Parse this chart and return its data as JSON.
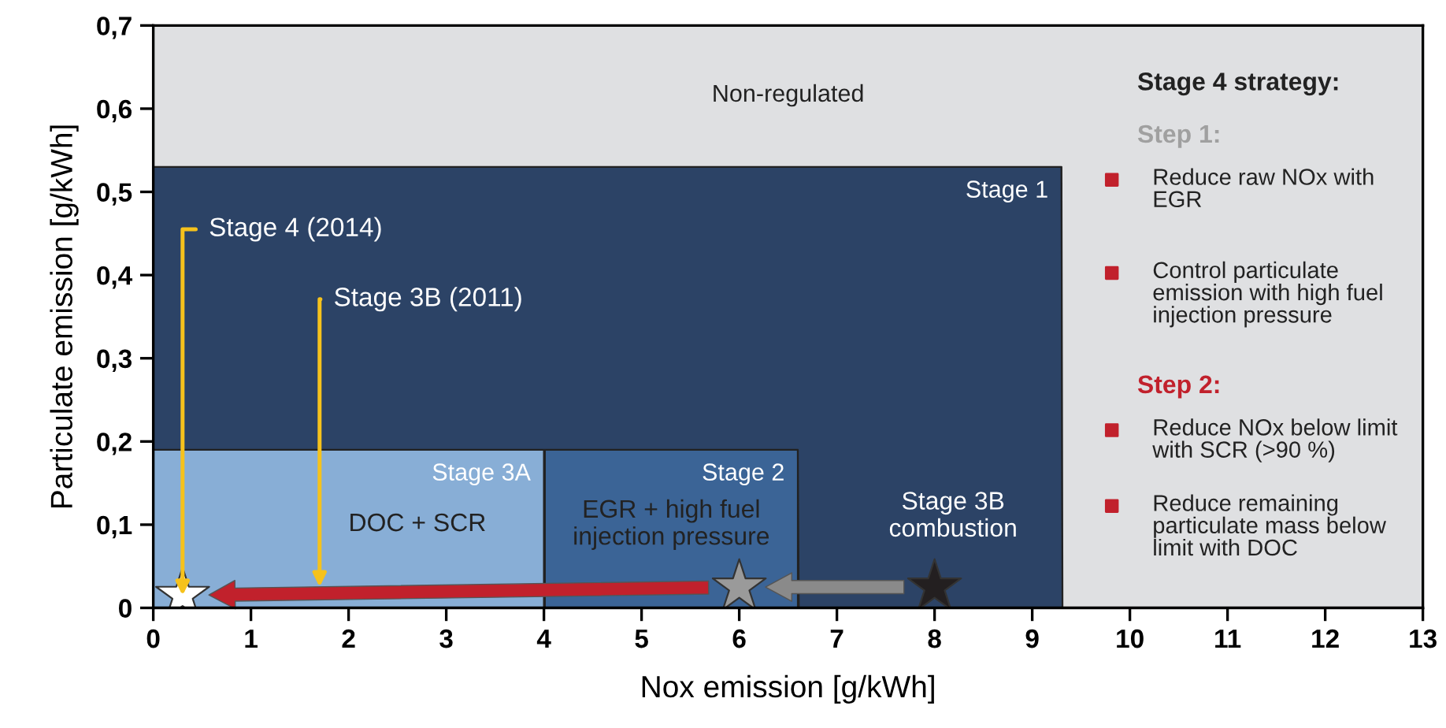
{
  "chart_data": {
    "type": "area",
    "stacked": true,
    "xlabel": "Nox emission [g/kWh]",
    "ylabel": "Particulate emission [g/kWh]",
    "xlim": [
      0,
      13
    ],
    "ylim": [
      0,
      0.7
    ],
    "xticks": [
      0,
      1,
      2,
      3,
      4,
      5,
      6,
      7,
      8,
      9,
      10,
      11,
      12,
      13
    ],
    "yticks": [
      0,
      {
        "value": 0.1,
        "label": "0,1"
      },
      {
        "value": 0.2,
        "label": "0,2"
      },
      {
        "value": 0.3,
        "label": "0,3"
      },
      {
        "value": 0.4,
        "label": "0,4"
      },
      {
        "value": 0.5,
        "label": "0,5"
      },
      {
        "value": 0.6,
        "label": "0,6"
      },
      {
        "value": 0.7,
        "label": "0,7"
      }
    ],
    "x": [
      0,
      4,
      4.01,
      6.6,
      6.61,
      9.3,
      9.31,
      13
    ],
    "series": [
      {
        "name": "Stage 3A",
        "color": "#88aed6",
        "values": [
          0.19,
          0.19,
          null,
          null,
          null,
          null,
          null,
          null
        ]
      },
      {
        "name": "Stage 2",
        "color": "#3b6496",
        "values": [
          null,
          null,
          0.19,
          0.19,
          null,
          null,
          null,
          null
        ]
      },
      {
        "name": "Stage 1",
        "color": "#2c4366",
        "values": [
          0.34,
          0.34,
          0.34,
          0.34,
          0.53,
          0.53,
          0,
          0
        ]
      },
      {
        "name": "Non-regulated",
        "color": "#dfe0e2",
        "values": [
          0.17,
          0.17,
          0.17,
          0.17,
          0.17,
          0.17,
          0.7,
          0.7
        ]
      },
      {
        "type": "scatter",
        "marker": "star",
        "x": [
          0.3,
          6,
          8
        ],
        "values": [
          0.015,
          0.025,
          0.025
        ],
        "colors": [
          "#ffffff",
          "#9a9a9a",
          "#231f20"
        ]
      }
    ],
    "annotations": [
      {
        "text": "Stage 4 (2014)",
        "x": 0.3,
        "y": 0.015
      },
      "Stage 3B (2011)",
      "DOC + SCR",
      "EGR + high fuel\ninjection pressure",
      "Stage 3B\ncombustion",
      "Stage 4 strategy:",
      "Step 1:",
      "Reduce raw NOx with\nEGR",
      "Control particulate\nemission with high fuel\ninjection pressure",
      "Step 2:",
      "Reduce NOx below limit\nwith SCR (>90 %)",
      "Reduce remaining\nparticulate mass below\nlimit with DOC"
    ]
  }
}
